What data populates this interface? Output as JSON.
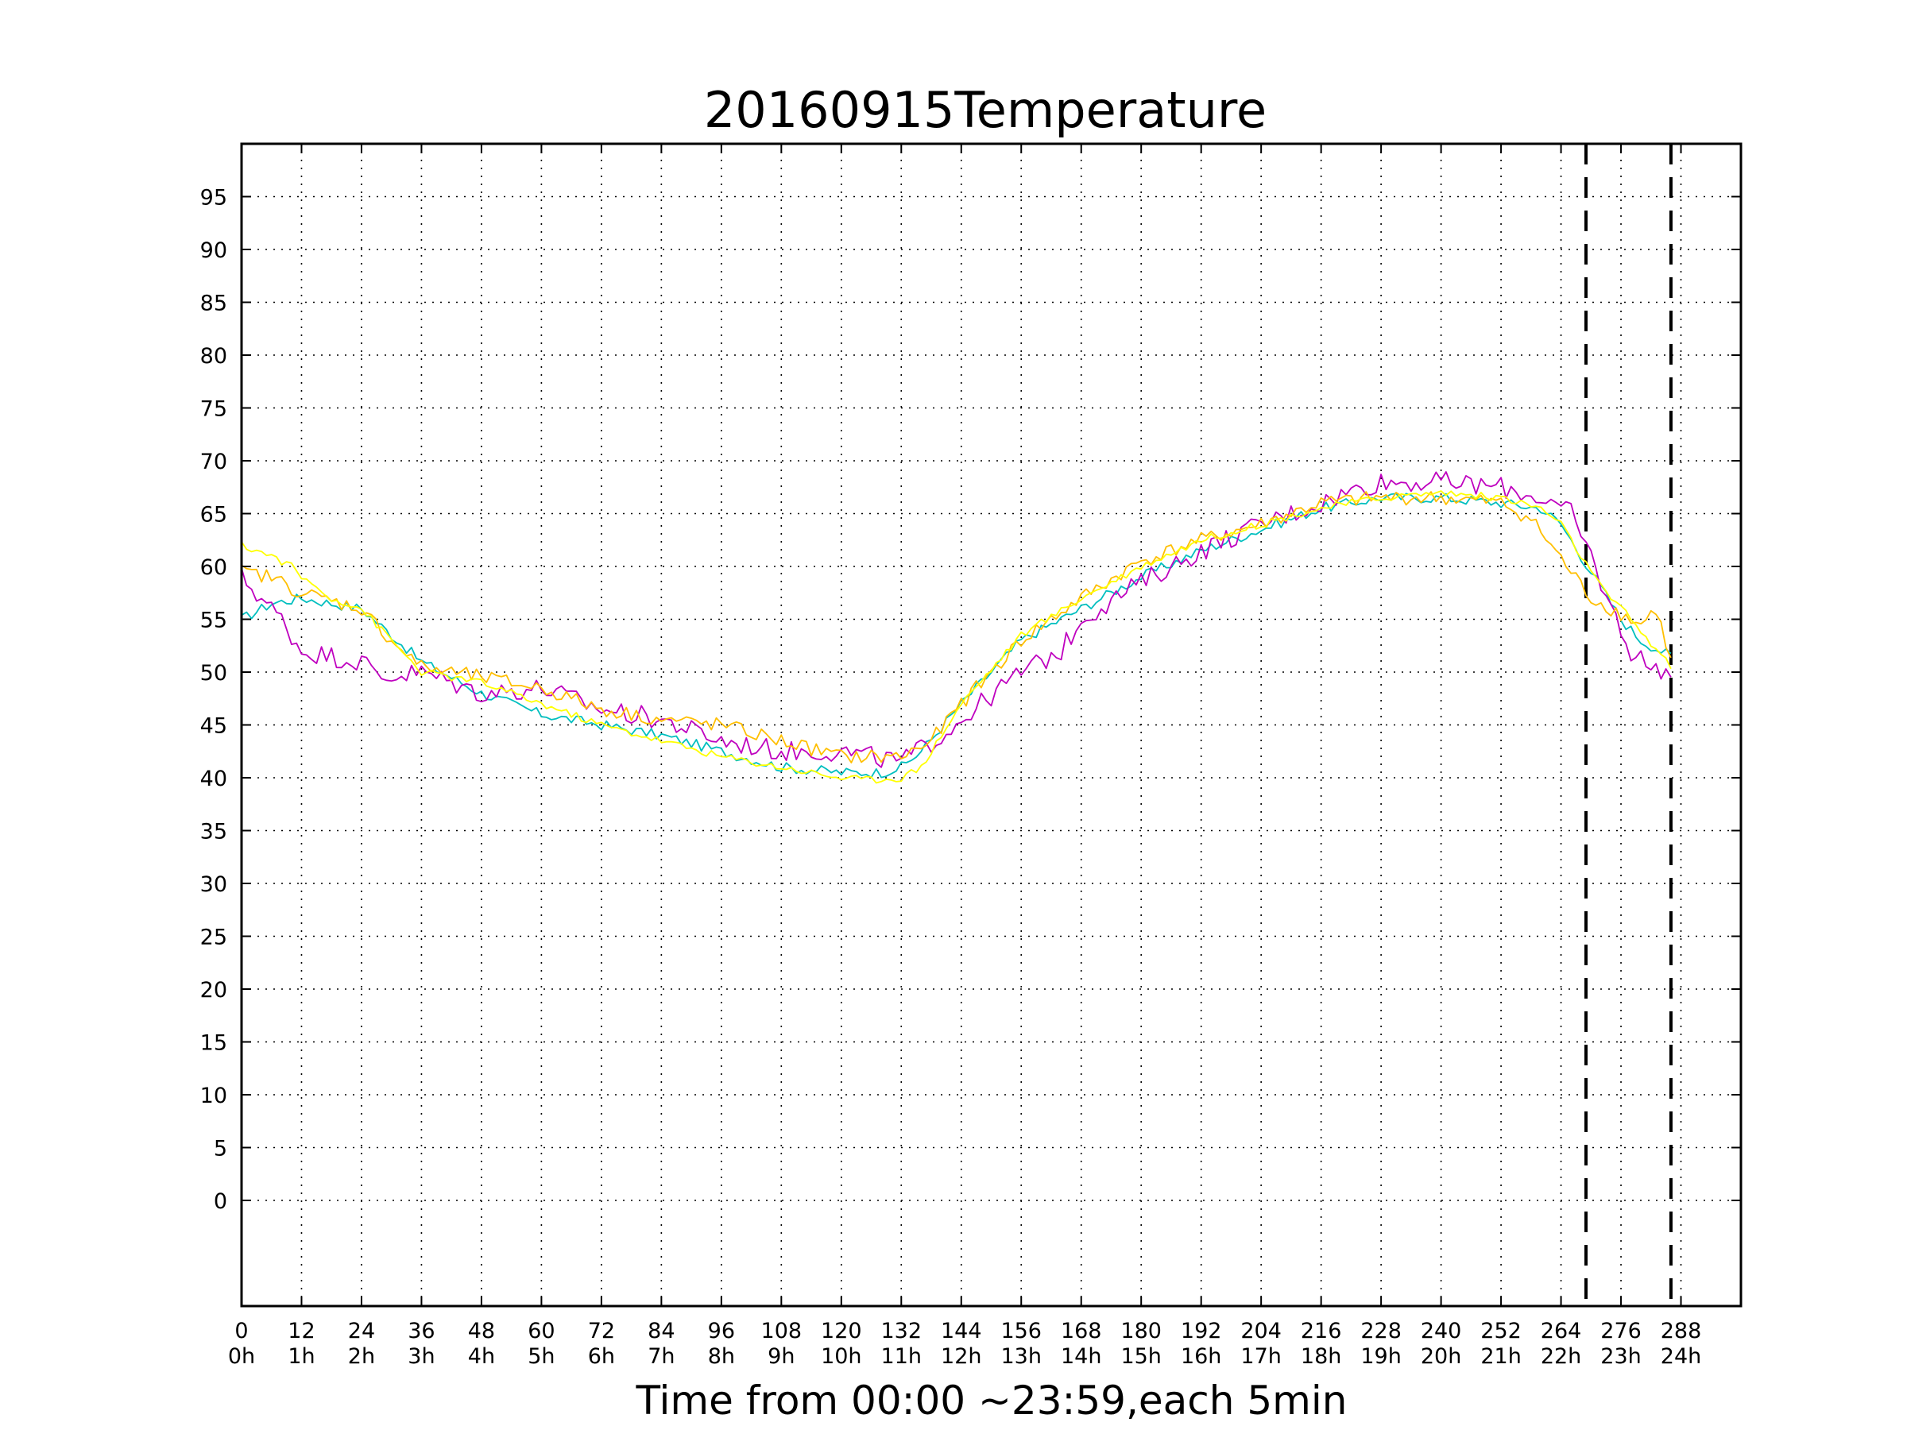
{
  "chart_data": {
    "type": "line",
    "title": "20160915Temperature",
    "xlabel": "Time from 00:00 ~23:59,each 5min",
    "ylabel": "",
    "xlim": [
      0,
      300
    ],
    "ylim": [
      -10,
      100
    ],
    "grid": true,
    "xticks": [
      0,
      12,
      24,
      36,
      48,
      60,
      72,
      84,
      96,
      108,
      120,
      132,
      144,
      156,
      168,
      180,
      192,
      204,
      216,
      228,
      240,
      252,
      264,
      276,
      288
    ],
    "xtick_labels": [
      "0",
      "12",
      "24",
      "36",
      "48",
      "60",
      "72",
      "84",
      "96",
      "108",
      "120",
      "132",
      "144",
      "156",
      "168",
      "180",
      "192",
      "204",
      "216",
      "228",
      "240",
      "252",
      "264",
      "276",
      "288"
    ],
    "xtick_hours": [
      "0h",
      "1h",
      "2h",
      "3h",
      "4h",
      "5h",
      "6h",
      "7h",
      "8h",
      "9h",
      "10h",
      "11h",
      "12h",
      "13h",
      "14h",
      "15h",
      "16h",
      "17h",
      "18h",
      "19h",
      "20h",
      "21h",
      "22h",
      "23h",
      "24h"
    ],
    "yticks": [
      0,
      5,
      10,
      15,
      20,
      25,
      30,
      35,
      40,
      45,
      50,
      55,
      60,
      65,
      70,
      75,
      80,
      85,
      90,
      95
    ],
    "vertical_markers": [
      269,
      286
    ],
    "series": [
      {
        "color": "#00bfbf",
        "x": [
          0,
          6,
          12,
          24,
          36,
          48,
          60,
          72,
          84,
          96,
          108,
          120,
          128,
          132,
          136,
          144,
          156,
          168,
          180,
          192,
          204,
          216,
          228,
          240,
          252,
          260,
          264,
          268,
          272,
          276,
          280,
          286
        ],
        "y": [
          55,
          56.5,
          57,
          56,
          51,
          48,
          46,
          45,
          44,
          42.5,
          41,
          40.5,
          40.5,
          41,
          42.5,
          47,
          53,
          56,
          59,
          61.5,
          63.5,
          65.5,
          66.5,
          66.5,
          66,
          65.5,
          64,
          61,
          58,
          55,
          53,
          51.5
        ]
      },
      {
        "color": "#bf00bf",
        "x": [
          0,
          4,
          8,
          12,
          18,
          24,
          28,
          36,
          48,
          60,
          72,
          84,
          96,
          108,
          120,
          132,
          140,
          148,
          156,
          164,
          168,
          180,
          192,
          204,
          216,
          224,
          228,
          240,
          252,
          260,
          266,
          270,
          274,
          278,
          282,
          286
        ],
        "y": [
          59,
          57,
          55,
          52,
          51.5,
          51,
          49.5,
          50,
          48,
          48.5,
          46.5,
          45.5,
          43.5,
          42.5,
          42.5,
          41.5,
          44,
          47,
          50,
          52,
          55,
          58.5,
          61.5,
          64,
          66,
          67.5,
          68,
          68,
          67.5,
          66.5,
          65,
          61,
          56,
          52,
          50.5,
          50
        ]
      },
      {
        "color": "#ffbf00",
        "x": [
          0,
          6,
          12,
          24,
          30,
          36,
          48,
          60,
          72,
          84,
          96,
          108,
          120,
          132,
          138,
          144,
          156,
          168,
          180,
          192,
          204,
          216,
          228,
          240,
          252,
          258,
          262,
          266,
          270,
          276,
          280,
          283,
          286
        ],
        "y": [
          59.5,
          59,
          57.5,
          56,
          53,
          50.5,
          49.5,
          48.5,
          46.5,
          45.5,
          45,
          43.5,
          42,
          42,
          43.5,
          47,
          53,
          57,
          60.5,
          62.5,
          64,
          66,
          66.5,
          66.5,
          66,
          64.5,
          62,
          59.5,
          57,
          55.5,
          54.5,
          56,
          51
        ]
      },
      {
        "color": "#ffff00",
        "x": [
          0,
          6,
          10,
          12,
          18,
          24,
          30,
          36,
          48,
          60,
          72,
          84,
          96,
          108,
          120,
          126,
          132,
          136,
          144,
          156,
          168,
          180,
          192,
          204,
          216,
          228,
          240,
          252,
          260,
          264,
          268,
          272,
          278,
          286
        ],
        "y": [
          62,
          61,
          60,
          59,
          57,
          56,
          53,
          50,
          49,
          47,
          45,
          43.5,
          42,
          41,
          40,
          39.8,
          40,
          41,
          47,
          53.5,
          57,
          60,
          62.5,
          64,
          65.5,
          66.5,
          67,
          66.5,
          65.5,
          64,
          61,
          58,
          55,
          50.5
        ]
      }
    ]
  }
}
